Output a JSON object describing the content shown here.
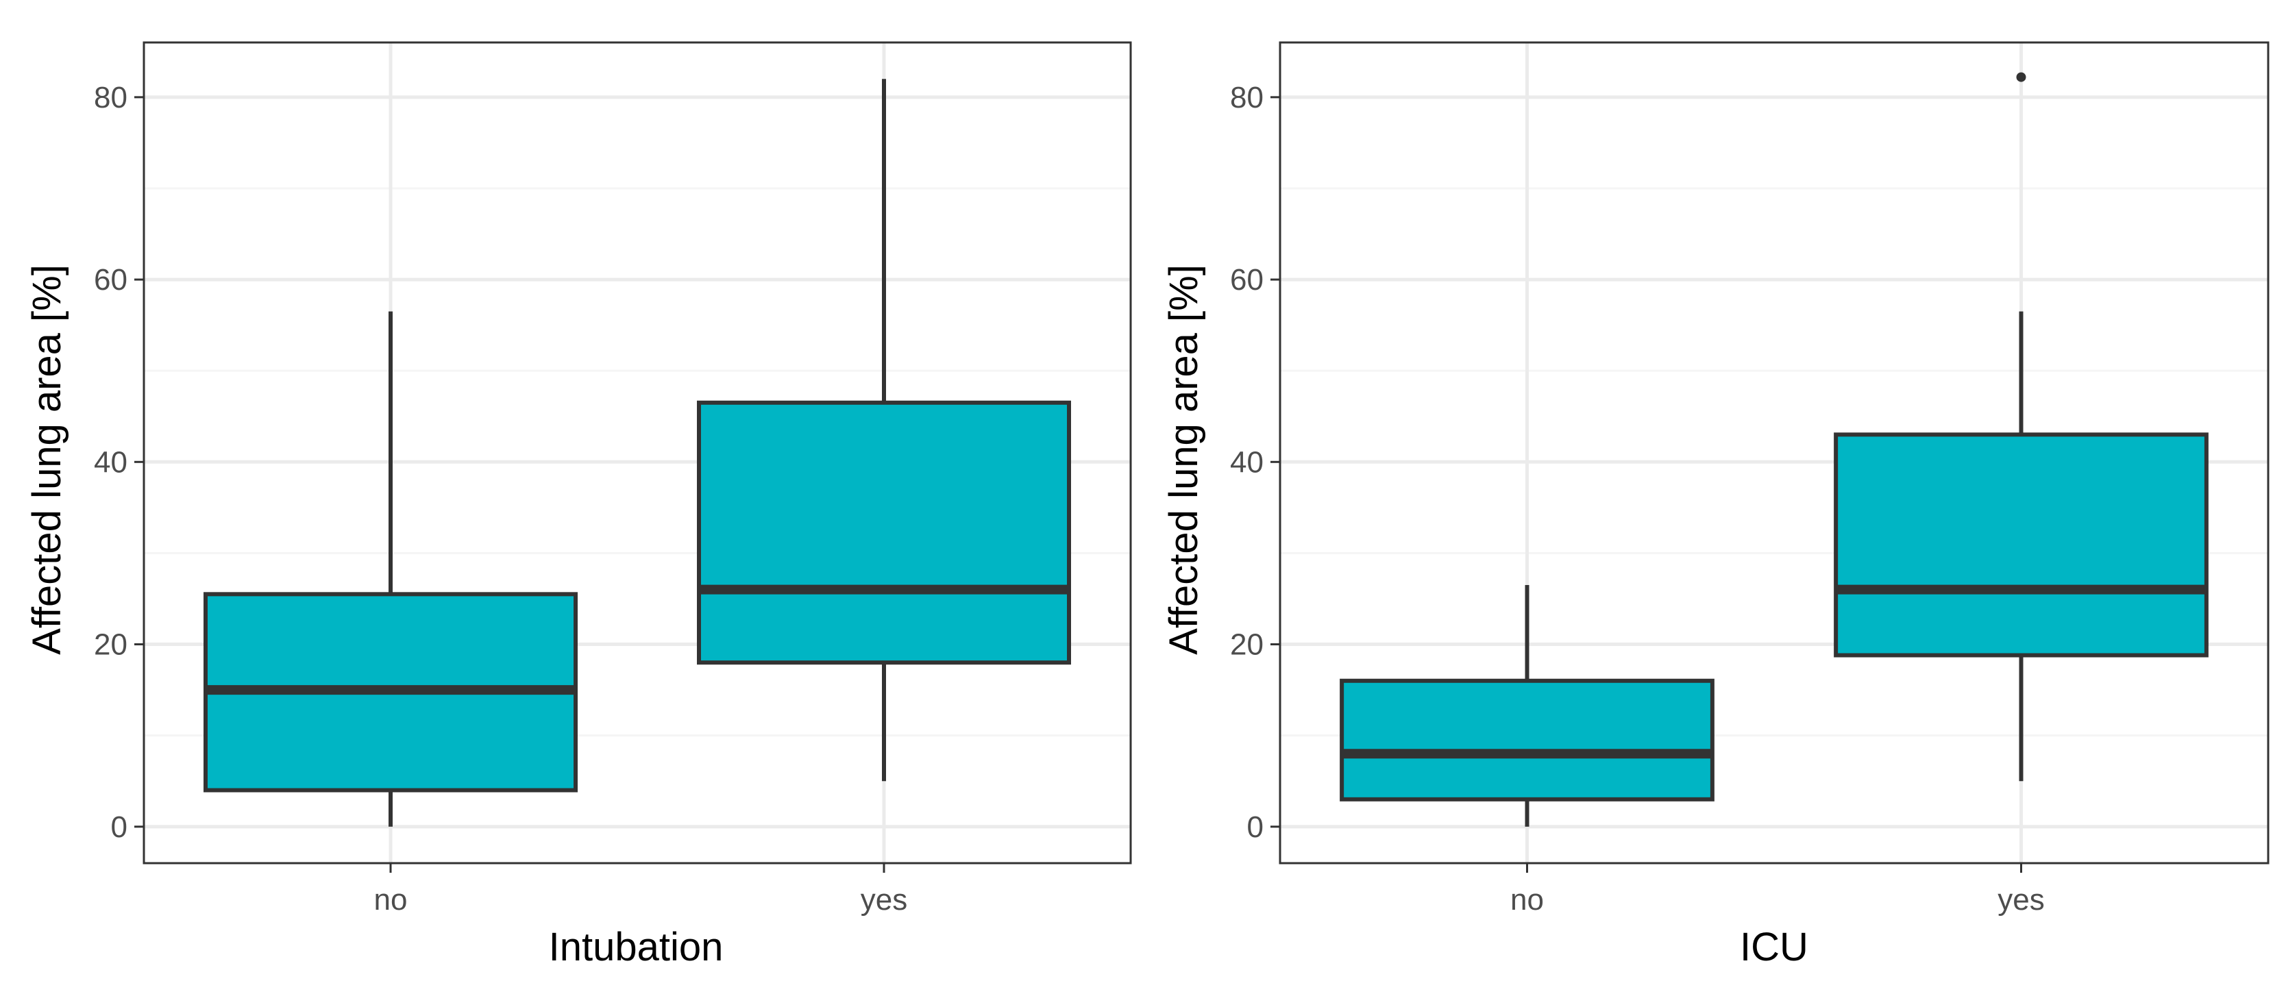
{
  "colors": {
    "box_fill": "#00B5C4",
    "box_stroke": "#333333",
    "grid_major": "#EBEBEB",
    "grid_minor": "#F5F5F5",
    "panel_border": "#333333",
    "tick_text": "#4D4D4D"
  },
  "chart_data": [
    {
      "type": "box",
      "xlabel": "Intubation",
      "ylabel": "Affected lung area [%]",
      "categories": [
        "no",
        "yes"
      ],
      "ylim": [
        -4,
        86
      ],
      "yticks": [
        0,
        20,
        40,
        60,
        80
      ],
      "grid": true,
      "boxes": [
        {
          "category": "no",
          "whisker_low": 0,
          "q1": 4,
          "median": 15,
          "q3": 25.5,
          "whisker_high": 56.5,
          "outliers": []
        },
        {
          "category": "yes",
          "whisker_low": 5,
          "q1": 18,
          "median": 26,
          "q3": 46.5,
          "whisker_high": 82,
          "outliers": []
        }
      ]
    },
    {
      "type": "box",
      "xlabel": "ICU",
      "ylabel": "Affected lung area [%]",
      "categories": [
        "no",
        "yes"
      ],
      "ylim": [
        -4,
        86
      ],
      "yticks": [
        0,
        20,
        40,
        60,
        80
      ],
      "grid": true,
      "boxes": [
        {
          "category": "no",
          "whisker_low": 0,
          "q1": 3,
          "median": 8,
          "q3": 16,
          "whisker_high": 26.5,
          "outliers": []
        },
        {
          "category": "yes",
          "whisker_low": 5,
          "q1": 18.8,
          "median": 26,
          "q3": 43,
          "whisker_high": 56.5,
          "outliers": [
            82.2
          ]
        }
      ]
    }
  ]
}
